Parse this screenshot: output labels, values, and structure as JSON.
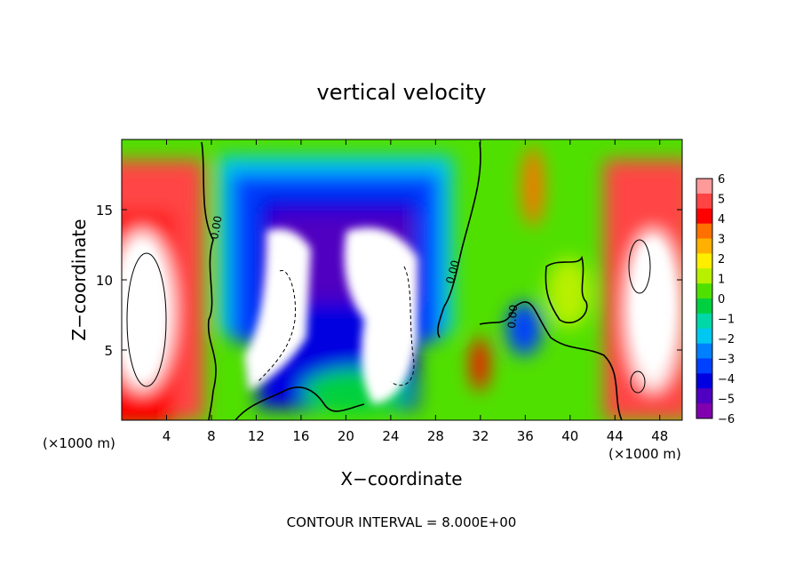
{
  "chart_data": {
    "type": "heatmap",
    "title": "vertical velocity",
    "xlabel": "X−coordinate",
    "ylabel": "Z−coordinate",
    "x_unit": "(×1000 m)",
    "y_unit": "(×1000 m)",
    "xlim": [
      0,
      50
    ],
    "ylim": [
      0,
      20
    ],
    "x_ticks": [
      4,
      8,
      12,
      16,
      20,
      24,
      28,
      32,
      36,
      40,
      44,
      48
    ],
    "y_ticks": [
      5,
      10,
      15
    ],
    "colorbar": {
      "ticks": [
        6,
        5,
        4,
        3,
        2,
        1,
        0,
        -1,
        -2,
        -3,
        -4,
        -5,
        -6
      ],
      "tick_labels": [
        "6",
        "5",
        "4",
        "3",
        "2",
        "1",
        "0",
        "−1",
        "−2",
        "−3",
        "−4",
        "−5",
        "−6"
      ],
      "colors": [
        "#ff9a9a",
        "#ff4444",
        "#ff0000",
        "#ff7000",
        "#ffb000",
        "#ffee00",
        "#b8f000",
        "#50e000",
        "#00d040",
        "#00d8a8",
        "#00c8f0",
        "#0080ff",
        "#0040ff",
        "#0000e0",
        "#5000c0",
        "#8000b0"
      ]
    },
    "contour_labels": [
      "0.00",
      "0.00",
      "0.00"
    ],
    "footer": "CONTOUR INTERVAL = 8.000E+00",
    "features": [
      {
        "kind": "updraft",
        "x": 2.5,
        "z": 10,
        "value": 7
      },
      {
        "kind": "updraft",
        "x": 47,
        "z": 9,
        "value": 7
      },
      {
        "kind": "downdraft",
        "x": 15,
        "z": 7,
        "value": -7
      },
      {
        "kind": "downdraft",
        "x": 24,
        "z": 8,
        "value": -7
      },
      {
        "kind": "downdraft",
        "x": 20,
        "z": 12,
        "value": -6
      }
    ]
  }
}
